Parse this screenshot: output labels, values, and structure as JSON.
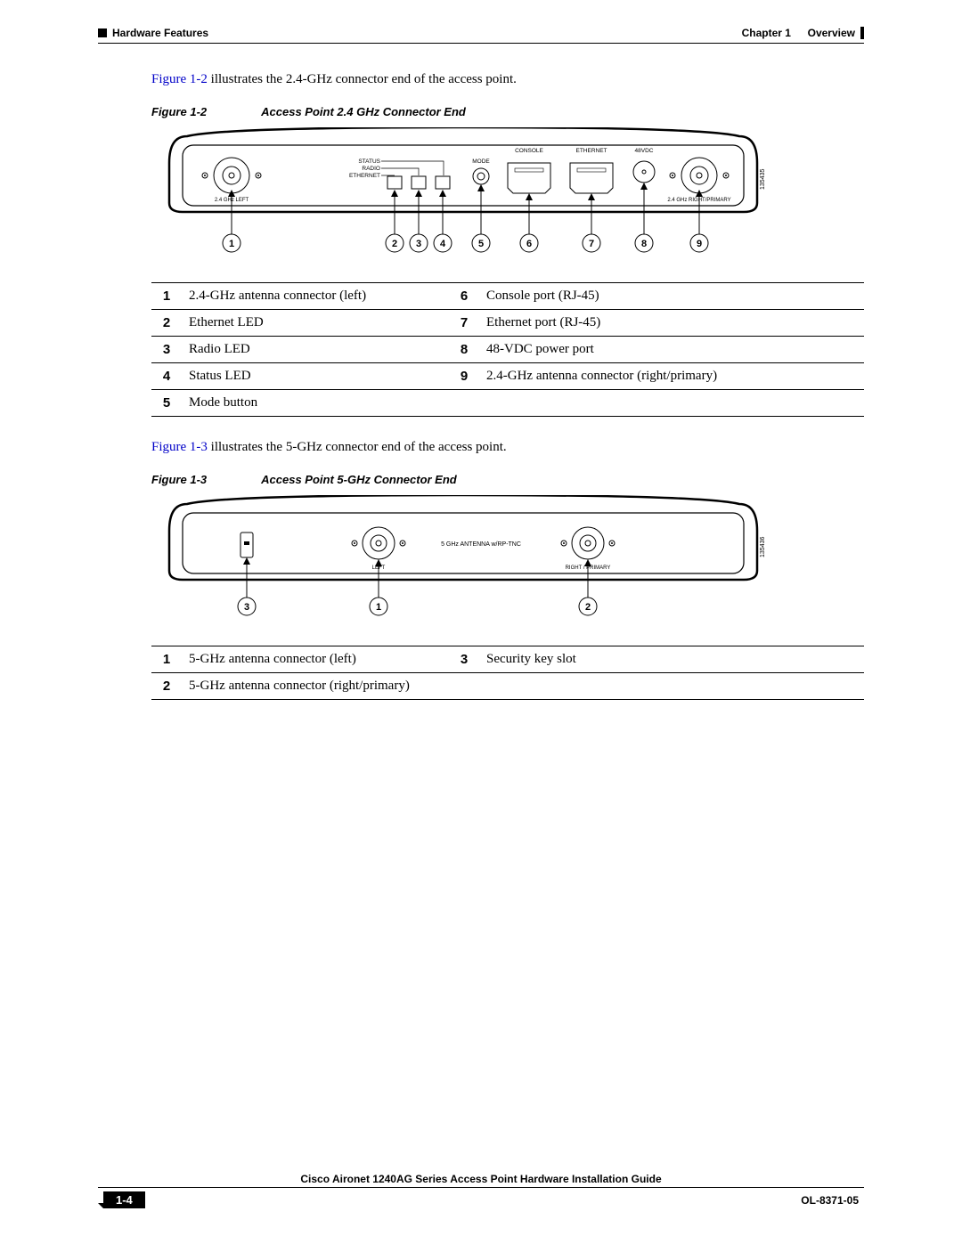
{
  "header": {
    "left": "Hardware Features",
    "right_chapter": "Chapter 1",
    "right_title": "Overview"
  },
  "intro1": {
    "xref": "Figure 1-2",
    "rest": " illustrates the 2.4-GHz connector end of the access point."
  },
  "figure1": {
    "num": "Figure 1-2",
    "title": "Access Point 2.4 GHz Connector End",
    "diagram": {
      "labels": {
        "status": "STATUS",
        "radio": "RADIO",
        "ethernet_led": "ETHERNET",
        "mode": "MODE",
        "console": "CONSOLE",
        "ethernet_port": "ETHERNET",
        "vdc": "48VDC",
        "ant_left": "2.4 GHz LEFT",
        "ant_right": "2.4 GHz RIGHT/PRIMARY",
        "partnum": "135435"
      },
      "callout_nums": [
        "1",
        "2",
        "3",
        "4",
        "5",
        "6",
        "7",
        "8",
        "9"
      ]
    }
  },
  "table1": {
    "rows": [
      [
        "1",
        "2.4-GHz antenna connector (left)",
        "6",
        "Console port (RJ-45)"
      ],
      [
        "2",
        "Ethernet LED",
        "7",
        "Ethernet port (RJ-45)"
      ],
      [
        "3",
        "Radio LED",
        "8",
        "48-VDC power port"
      ],
      [
        "4",
        "Status LED",
        "9",
        "2.4-GHz antenna connector (right/primary)"
      ],
      [
        "5",
        "Mode button",
        "",
        ""
      ]
    ]
  },
  "intro2": {
    "xref": "Figure 1-3",
    "rest": " illustrates the 5-GHz connector end of the access point."
  },
  "figure2": {
    "num": "Figure 1-3",
    "title": "Access Point 5-GHz Connector End",
    "diagram": {
      "labels": {
        "center": "5 GHz ANTENNA w/RP-TNC",
        "left": "LEFT",
        "right": "RIGHT / PRIMARY",
        "partnum": "135436"
      },
      "callout_nums": [
        "3",
        "1",
        "2"
      ]
    }
  },
  "table2": {
    "rows": [
      [
        "1",
        "5-GHz antenna connector (left)",
        "3",
        "Security key slot"
      ],
      [
        "2",
        "5-GHz antenna connector (right/primary)",
        "",
        ""
      ]
    ]
  },
  "footer": {
    "guide": "Cisco Aironet 1240AG Series Access Point Hardware Installation Guide",
    "page": "1-4",
    "doc": "OL-8371-05"
  }
}
